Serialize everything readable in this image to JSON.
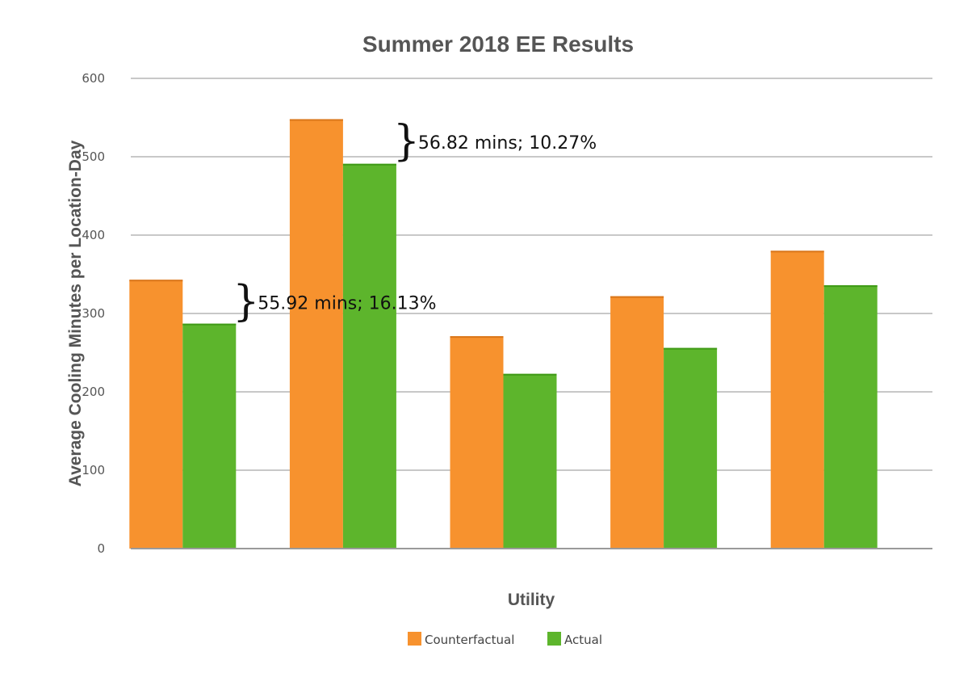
{
  "chart_data": {
    "type": "bar",
    "title": "Summer 2018 EE Results",
    "xlabel": "Utility",
    "ylabel": "Average Cooling Minutes per Location-Day",
    "ylim": [
      0,
      600
    ],
    "yticks": [
      0,
      100,
      200,
      300,
      400,
      500,
      600
    ],
    "categories": [
      "",
      "",
      "",
      "",
      ""
    ],
    "grid": true,
    "legend_position": "bottom",
    "series": [
      {
        "name": "Counterfactual",
        "color": "#f7922e",
        "values": [
          343,
          548,
          271,
          322,
          380
        ]
      },
      {
        "name": "Actual",
        "color": "#5db52c",
        "values": [
          287,
          491,
          223,
          256,
          336
        ]
      }
    ],
    "annotations": [
      {
        "category_index": 0,
        "low": 287,
        "high": 343,
        "text": "55.92 mins; 16.13%"
      },
      {
        "category_index": 1,
        "low": 491,
        "high": 548,
        "text": "56.82 mins; 10.27%"
      }
    ]
  }
}
